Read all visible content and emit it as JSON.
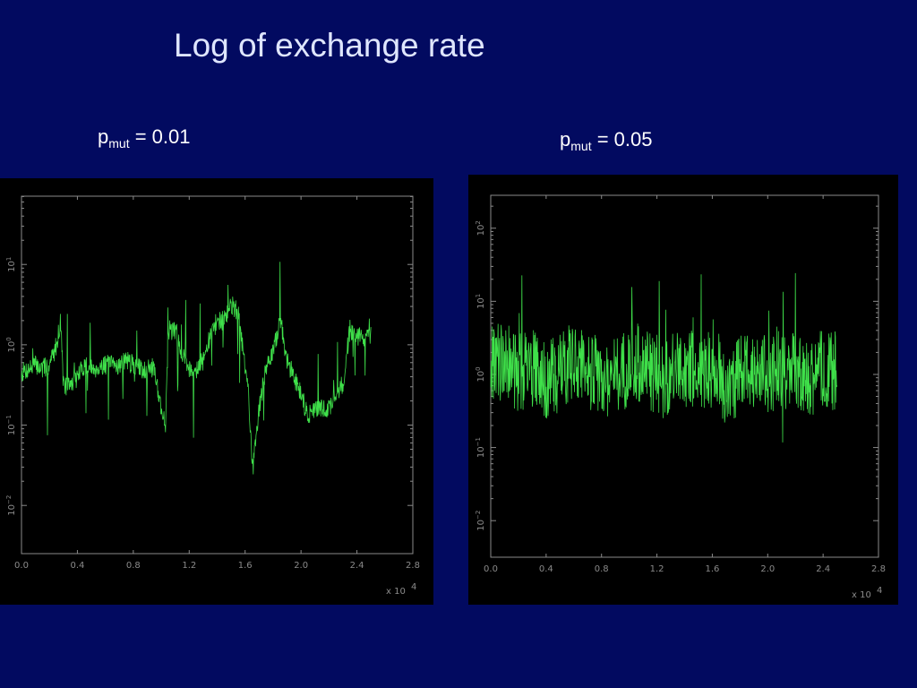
{
  "slide": {
    "title": "Log of exchange rate",
    "colors": {
      "background": "#020a60",
      "title": "#dfe6ff",
      "series": "#3fe04a",
      "plot_background": "#000000",
      "axis": "#8a8a8a"
    }
  },
  "panels": [
    {
      "label_main": "p",
      "label_sub": "mut",
      "label_rest": " = 0.01"
    },
    {
      "label_main": "p",
      "label_sub": "mut",
      "label_rest": " = 0.05"
    }
  ],
  "chart_data": [
    {
      "type": "line",
      "title": "",
      "xlabel": "",
      "ylabel": "",
      "x_scale_label": "x 10",
      "x_scale_exponent": "4",
      "xlim": [
        0.0,
        2.8
      ],
      "xticks": [
        "0.0",
        "0.4",
        "0.8",
        "1.2",
        "1.6",
        "2.0",
        "2.4",
        "2.8"
      ],
      "y_scale": "log",
      "ylim_exponent": [
        -2.6,
        1.85
      ],
      "yticks": [
        {
          "base": "10",
          "exp": "−2",
          "value": -2
        },
        {
          "base": "10",
          "exp": "−1",
          "value": -1
        },
        {
          "base": "10",
          "exp": "0",
          "value": 0
        },
        {
          "base": "10",
          "exp": "1",
          "value": 1
        }
      ],
      "grid": false,
      "legend": "none",
      "series": [
        {
          "x": [
            0.0,
            0.05,
            0.1,
            0.15,
            0.2,
            0.25,
            0.28,
            0.3,
            0.35,
            0.4,
            0.45,
            0.5,
            0.55,
            0.6,
            0.65,
            0.7,
            0.75,
            0.8,
            0.85,
            0.9,
            0.95,
            1.0,
            1.03,
            1.05,
            1.1,
            1.15,
            1.2,
            1.25,
            1.3,
            1.35,
            1.4,
            1.45,
            1.5,
            1.55,
            1.6,
            1.62,
            1.65,
            1.7,
            1.75,
            1.8,
            1.85,
            1.9,
            1.95,
            2.0,
            2.05,
            2.1,
            2.15,
            2.2,
            2.25,
            2.3,
            2.35,
            2.4,
            2.45,
            2.5
          ],
          "y_log10": [
            -0.35,
            -0.3,
            -0.25,
            -0.3,
            -0.25,
            0.0,
            0.3,
            -0.5,
            -0.5,
            -0.4,
            -0.25,
            -0.3,
            -0.28,
            -0.25,
            -0.25,
            -0.25,
            -0.2,
            -0.25,
            -0.3,
            -0.3,
            -0.28,
            -0.8,
            -1.0,
            0.1,
            0.2,
            -0.1,
            -0.3,
            -0.3,
            -0.2,
            0.1,
            0.3,
            0.3,
            0.5,
            0.4,
            -0.3,
            -0.5,
            -1.5,
            -0.8,
            -0.3,
            -0.1,
            0.3,
            -0.2,
            -0.4,
            -0.6,
            -0.9,
            -0.8,
            -0.8,
            -0.8,
            -0.6,
            -0.5,
            0.2,
            0.1,
            0.1,
            0.1
          ]
        }
      ]
    },
    {
      "type": "line",
      "title": "",
      "xlabel": "",
      "ylabel": "",
      "x_scale_label": "x 10",
      "x_scale_exponent": "4",
      "xlim": [
        0.0,
        2.8
      ],
      "xticks": [
        "0.0",
        "0.4",
        "0.8",
        "1.2",
        "1.6",
        "2.0",
        "2.4",
        "2.8"
      ],
      "y_scale": "log",
      "ylim_exponent": [
        -2.5,
        2.45
      ],
      "yticks": [
        {
          "base": "10",
          "exp": "−2",
          "value": -2
        },
        {
          "base": "10",
          "exp": "−1",
          "value": -1
        },
        {
          "base": "10",
          "exp": "0",
          "value": 0
        },
        {
          "base": "10",
          "exp": "1",
          "value": 1
        },
        {
          "base": "10",
          "exp": "2",
          "value": 2
        }
      ],
      "grid": false,
      "legend": "none",
      "series": [
        {
          "x": [
            0.0,
            0.1,
            0.2,
            0.3,
            0.4,
            0.5,
            0.6,
            0.7,
            0.8,
            0.9,
            1.0,
            1.1,
            1.2,
            1.3,
            1.4,
            1.5,
            1.6,
            1.7,
            1.8,
            1.9,
            2.0,
            2.1,
            2.2,
            2.3,
            2.4,
            2.5
          ],
          "y_log10": [
            0.1,
            0.2,
            0.0,
            0.1,
            -0.1,
            0.0,
            0.2,
            0.1,
            -0.1,
            0.0,
            0.1,
            0.2,
            -0.1,
            0.0,
            0.1,
            0.0,
            0.1,
            -0.2,
            0.0,
            0.1,
            0.0,
            0.1,
            0.0,
            -0.1,
            0.1,
            0.0
          ]
        }
      ]
    }
  ]
}
